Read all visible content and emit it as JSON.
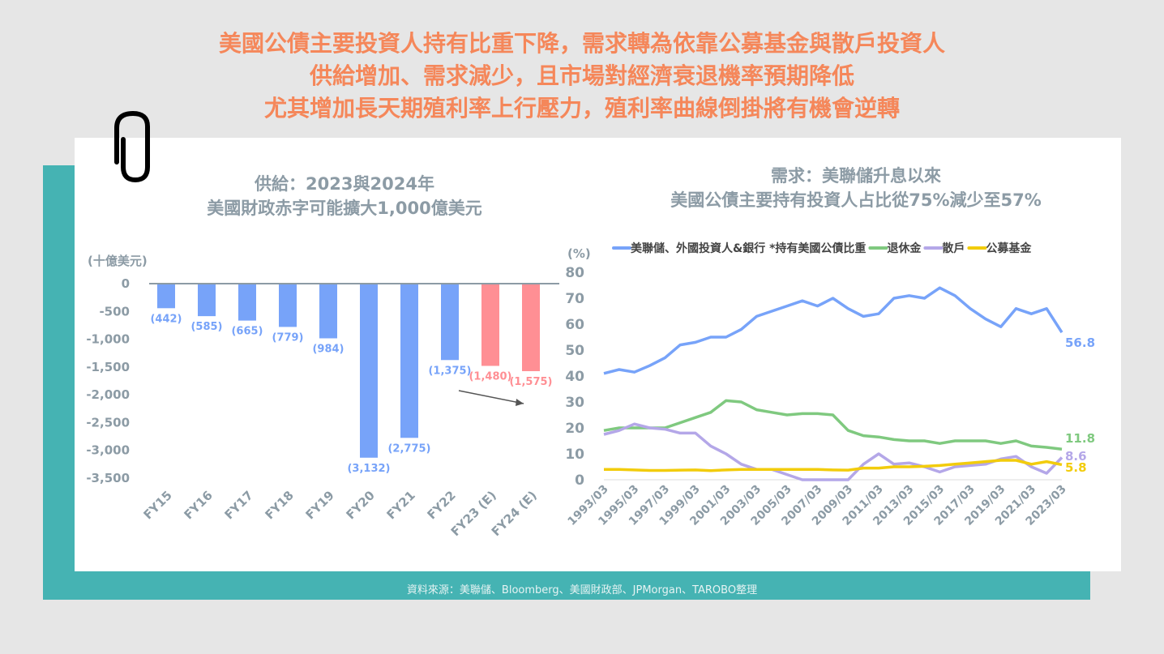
{
  "headline": [
    "美國公債主要投資人持有比重下降，需求轉為依靠公募基金與散戶投資人",
    "供給增加、需求減少，且市場對經濟衰退機率預期降低",
    "尤其增加長天期殖利率上行壓力，殖利率曲線倒掛將有機會逆轉"
  ],
  "source": "資料來源：美聯儲、Bloomberg、美國財政部、JPMorgan、TAROBO整理",
  "icons": {
    "decor": "paperclip-icon"
  },
  "chart_data": [
    {
      "type": "bar",
      "title": [
        "供給：2023與2024年",
        "美國財政赤字可能擴大1,000億美元"
      ],
      "ylabel": "(十億美元)",
      "categories": [
        "FY15",
        "FY16",
        "FY17",
        "FY18",
        "FY19",
        "FY20",
        "FY21",
        "FY22",
        "FY23 (E)",
        "FY24 (E)"
      ],
      "values": [
        -442,
        -585,
        -665,
        -779,
        -984,
        -3132,
        -2775,
        -1375,
        -1480,
        -1575
      ],
      "data_labels": [
        "(442)",
        "(585)",
        "(665)",
        "(779)",
        "(984)",
        "(3,132)",
        "(2,775)",
        "(1,375)",
        "(1,480)",
        "(1,575)"
      ],
      "estimate": [
        false,
        false,
        false,
        false,
        false,
        false,
        false,
        false,
        true,
        true
      ],
      "yticks": [
        0,
        -500,
        -1000,
        -1500,
        -2000,
        -2500,
        -3000,
        -3500
      ],
      "ytick_labels": [
        "0",
        "-500",
        "-1,000",
        "-1,500",
        "-2,000",
        "-2,500",
        "-3,000",
        "-3,500"
      ],
      "ylim": [
        -3500,
        0
      ],
      "colors": {
        "actual": "#77a3f9",
        "estimate": "#ff8f94"
      }
    },
    {
      "type": "line",
      "title": [
        "需求：美聯儲升息以來",
        "美國公債主要持有投資人占比從75%減少至57%"
      ],
      "ylabel": "(%)",
      "ylim": [
        0,
        80
      ],
      "yticks": [
        0,
        10,
        20,
        30,
        40,
        50,
        60,
        70,
        80
      ],
      "x": [
        1993,
        1994,
        1995,
        1996,
        1997,
        1998,
        1999,
        2000,
        2001,
        2002,
        2003,
        2004,
        2005,
        2006,
        2007,
        2008,
        2009,
        2010,
        2011,
        2012,
        2013,
        2014,
        2015,
        2016,
        2017,
        2018,
        2019,
        2020,
        2021,
        2022,
        2023
      ],
      "xtick_labels": [
        "1993/03",
        "1995/03",
        "1997/03",
        "1999/03",
        "2001/03",
        "2003/03",
        "2005/03",
        "2007/03",
        "2009/03",
        "2011/03",
        "2013/03",
        "2015/03",
        "2017/03",
        "2019/03",
        "2021/03",
        "2023/03"
      ],
      "legend_position": "top",
      "series": [
        {
          "name": "美聯儲、外國投資人&銀行 *持有美國公債比重",
          "color": "#77a3f9",
          "end_label": "56.8",
          "values": [
            41,
            42.5,
            41.5,
            44,
            47,
            52,
            53,
            55,
            55,
            58,
            63,
            65,
            67,
            69,
            67,
            70,
            66,
            63,
            64,
            70,
            71,
            70,
            74,
            71,
            66,
            62,
            59,
            66,
            64,
            66,
            56.8
          ]
        },
        {
          "name": "退休金",
          "color": "#7fc97f",
          "end_label": "11.8",
          "values": [
            19,
            20,
            20,
            20,
            20,
            22,
            24,
            26,
            30.5,
            30,
            27,
            26,
            25,
            25.5,
            25.5,
            25,
            19,
            17,
            16.5,
            15.5,
            15,
            15,
            14,
            15,
            15,
            15,
            14,
            15,
            13,
            12.5,
            11.8
          ]
        },
        {
          "name": "散戶",
          "color": "#b4a7e8",
          "end_label": "8.6",
          "values": [
            17.5,
            19,
            21.5,
            20,
            19.5,
            18,
            18,
            13,
            10,
            6,
            4,
            4,
            2,
            0,
            0,
            0,
            0,
            6,
            10,
            6,
            6.5,
            5,
            3,
            5,
            5.5,
            6,
            8,
            9,
            5,
            2.5,
            8.6
          ]
        },
        {
          "name": "公募基金",
          "color": "#f2cc0c",
          "end_label": "5.8",
          "values": [
            4,
            4,
            3.8,
            3.6,
            3.6,
            3.7,
            3.8,
            3.5,
            3.8,
            4,
            4,
            4,
            4,
            4,
            4,
            3.8,
            3.7,
            4.5,
            4.5,
            5,
            5,
            5.2,
            5.5,
            6,
            6.5,
            7,
            7.5,
            7.5,
            6,
            7,
            5.8
          ]
        }
      ]
    }
  ]
}
